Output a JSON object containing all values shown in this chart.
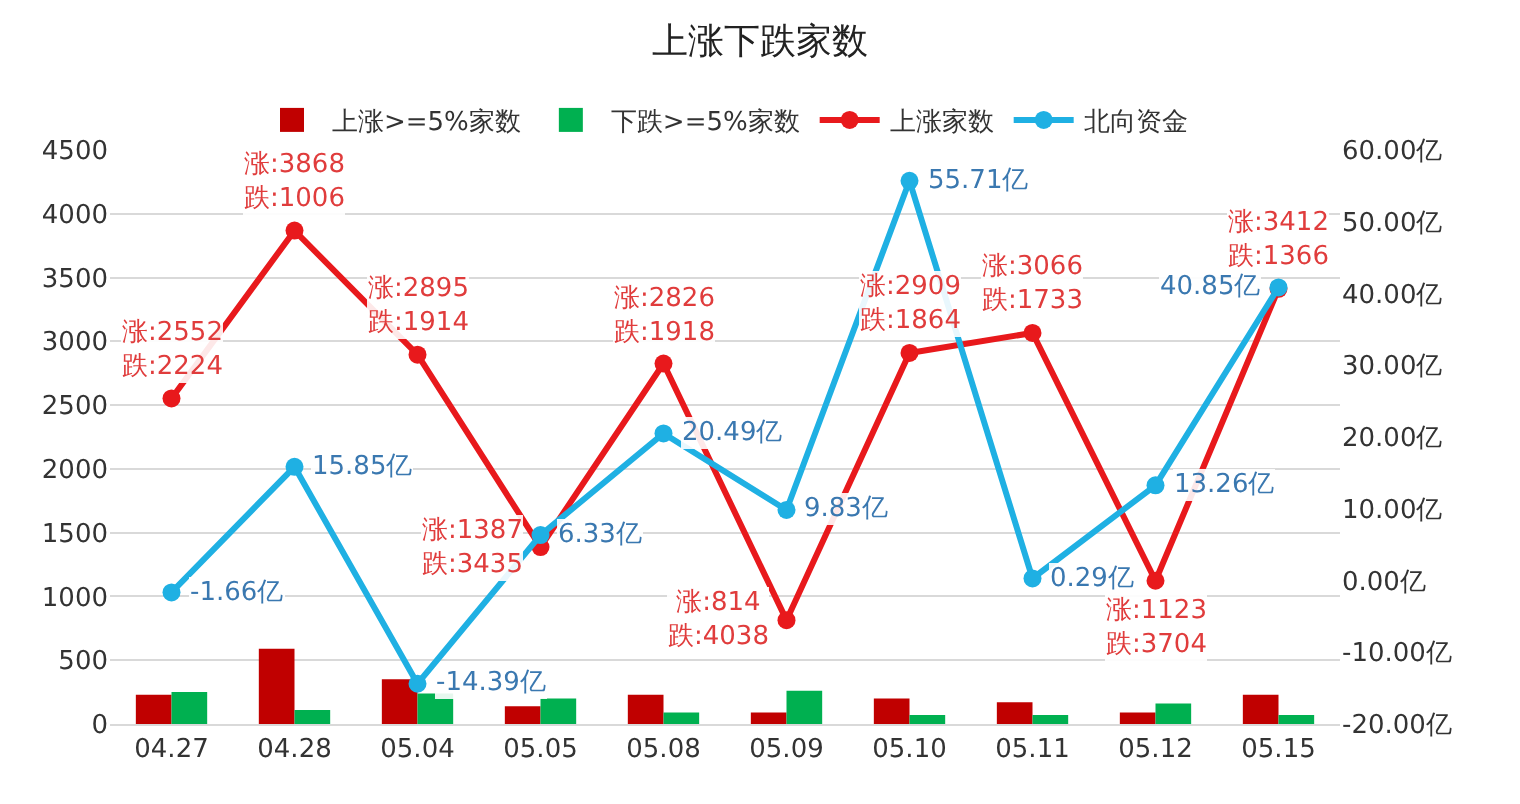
{
  "chart_data": {
    "type": "bar",
    "title": "上涨下跌家数",
    "categories": [
      "04.27",
      "04.28",
      "05.04",
      "05.05",
      "05.08",
      "05.09",
      "05.10",
      "05.11",
      "05.12",
      "05.15"
    ],
    "series": [
      {
        "name": "上涨>=5%家数",
        "color": "#c00000",
        "values": [
          230,
          590,
          350,
          140,
          230,
          90,
          200,
          170,
          90,
          230
        ]
      },
      {
        "name": "下跌>=5%家数",
        "color": "#00b050",
        "values": [
          250,
          110,
          240,
          200,
          90,
          260,
          70,
          70,
          160,
          70
        ]
      },
      {
        "name": "上涨家数",
        "type": "line",
        "color": "#e8191c",
        "values": [
          2552,
          3868,
          2895,
          1387,
          2826,
          814,
          2909,
          3066,
          1123,
          3412
        ],
        "value_labels": [
          "涨:2552\n跌:2224",
          "涨:3868\n跌:1006",
          "涨:2895\n跌:1914",
          "涨:1387\n跌:3435",
          "涨:2826\n跌:1918",
          "涨:814\n跌:4038",
          "涨:2909\n跌:1864",
          "涨:3066\n跌:1733",
          "涨:1123\n跌:3704",
          "涨:3412\n跌:1366"
        ]
      },
      {
        "name": "北向资金",
        "type": "line",
        "axis": "y2",
        "color": "#1fb0e3",
        "values": [
          -1.66,
          15.85,
          -14.39,
          6.33,
          20.49,
          9.83,
          55.71,
          0.29,
          13.26,
          40.85
        ],
        "value_labels": [
          "-1.66亿",
          "15.85亿",
          "-14.39亿",
          "6.33亿",
          "20.49亿",
          "9.83亿",
          "55.71亿",
          "0.29亿",
          "13.26亿",
          "40.85亿"
        ]
      }
    ],
    "ylim": [
      0,
      4500
    ],
    "yticks": [
      0,
      500,
      1000,
      1500,
      2000,
      2500,
      3000,
      3500,
      4000,
      4500
    ],
    "y2lim": [
      -20,
      60
    ],
    "y2ticks": [
      {
        "value": -20,
        "label": "-20.00亿"
      },
      {
        "value": -10,
        "label": "-10.00亿"
      },
      {
        "value": 0,
        "label": "0.00亿"
      },
      {
        "value": 10,
        "label": "10.00亿"
      },
      {
        "value": 20,
        "label": "20.00亿"
      },
      {
        "value": 30,
        "label": "30.00亿"
      },
      {
        "value": 40,
        "label": "40.00亿"
      },
      {
        "value": 50,
        "label": "50.00亿"
      },
      {
        "value": 60,
        "label": "60.00亿"
      }
    ],
    "grid": "y",
    "legend": "top",
    "marker": "circle",
    "line_style": "solid"
  }
}
